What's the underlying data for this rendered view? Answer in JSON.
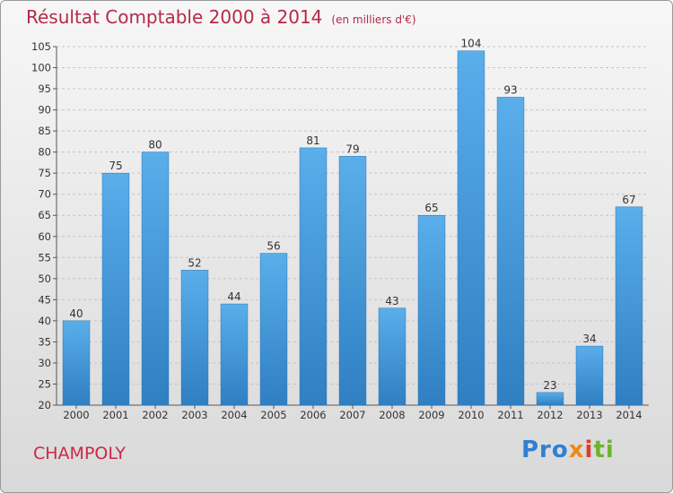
{
  "chart_data": {
    "type": "bar",
    "title": "Résultat Comptable 2000 à 2014",
    "subtitle": "(en milliers d'€)",
    "categories": [
      "2000",
      "2001",
      "2002",
      "2003",
      "2004",
      "2005",
      "2006",
      "2007",
      "2008",
      "2009",
      "2010",
      "2011",
      "2012",
      "2013",
      "2014"
    ],
    "values": [
      40,
      75,
      80,
      52,
      44,
      56,
      81,
      79,
      43,
      65,
      104,
      93,
      23,
      34,
      67
    ],
    "ylim": [
      20,
      105
    ],
    "yticks": [
      20,
      25,
      30,
      35,
      40,
      45,
      50,
      55,
      60,
      65,
      70,
      75,
      80,
      85,
      90,
      95,
      100,
      105
    ],
    "grid": true,
    "bar_color": "#4a9ee0"
  },
  "location": "CHAMPOLY",
  "logo": {
    "p1": "Pro",
    "p2": "x",
    "p3": "i",
    "p4": "ti"
  }
}
